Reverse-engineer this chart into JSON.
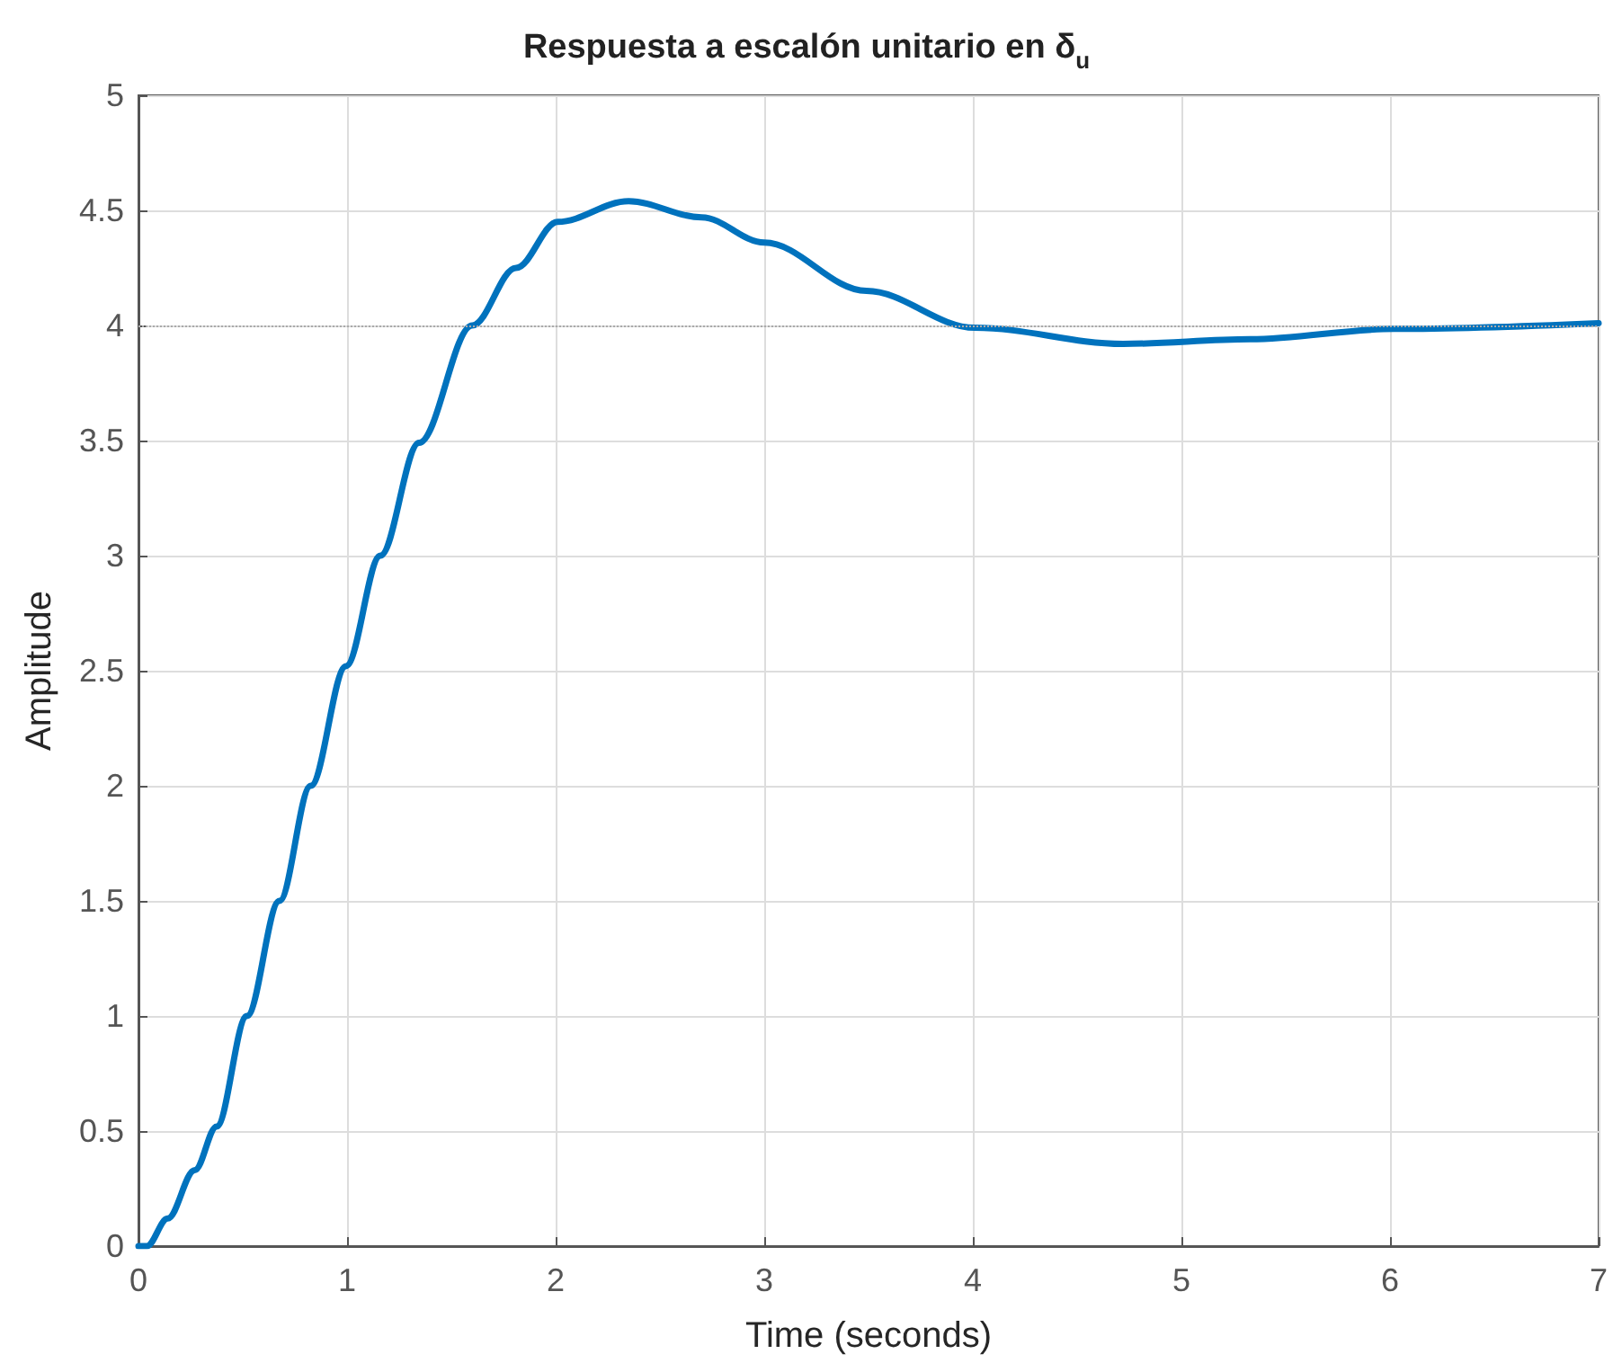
{
  "chart_data": {
    "type": "line",
    "title": "Respuesta a escalón unitario en δ$_{u}$",
    "xlabel": "Time (seconds)",
    "ylabel": "Amplitude",
    "xlim": [
      0,
      7
    ],
    "xticks": [
      0,
      1,
      2,
      3,
      4,
      5,
      6,
      7
    ],
    "ylim": [
      0,
      5
    ],
    "yticks": [
      0,
      0.5,
      1,
      1.5,
      2,
      2.5,
      3,
      3.5,
      4,
      4.5,
      5
    ],
    "grid": true,
    "marker": "none",
    "line_style": "solid",
    "series": [
      {
        "color": "#0072bd",
        "x": [
          0,
          0.04,
          0.14,
          0.27,
          0.375,
          0.52,
          0.676,
          0.826,
          0.995,
          1.16,
          1.345,
          1.6,
          1.81,
          2.01,
          2.35,
          2.7,
          3.0,
          3.49,
          4.01,
          4.72,
          5.33,
          6.02,
          7
        ],
        "values": [
          0,
          0,
          0.12,
          0.33,
          0.52,
          1.0,
          1.5,
          2.0,
          2.52,
          3.0,
          3.49,
          4.0,
          4.25,
          4.45,
          4.54,
          4.47,
          4.36,
          4.15,
          3.99,
          3.92,
          3.94,
          3.985,
          4.01
        ]
      }
    ],
    "ref_lines": [
      {
        "axis": "y",
        "value": 4,
        "color": "#aaaaaa",
        "line_style": "dotted"
      }
    ]
  }
}
